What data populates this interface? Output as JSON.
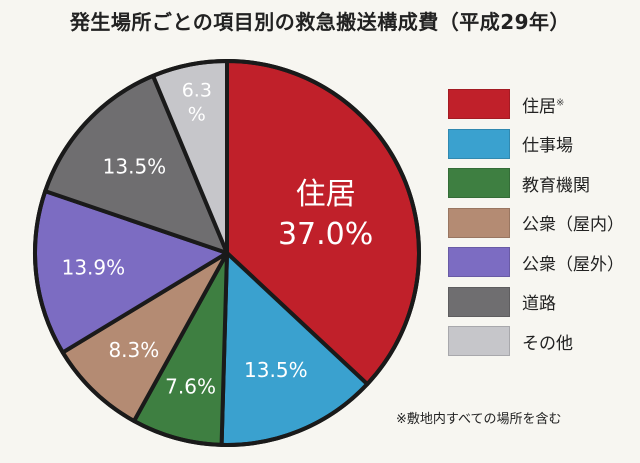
{
  "title": "発生場所ごとの項目別の救急搬送構成費（平成29年）",
  "footnote": "※敷地内すべての場所を含む",
  "chart_data": {
    "type": "pie",
    "title": "発生場所ごとの項目別の救急搬送構成費（平成29年）",
    "unit": "%",
    "slices": [
      {
        "label": "住居",
        "note": "※",
        "value": 37.0,
        "value_text": "37.0%",
        "color": "#c0202a",
        "text_color": "#ffffff"
      },
      {
        "label": "仕事場",
        "value": 13.5,
        "value_text": "13.5%",
        "color": "#3aa1cf",
        "text_color": "#ffffff"
      },
      {
        "label": "教育機関",
        "value": 7.6,
        "value_text": "7.6%",
        "color": "#3e7f41",
        "text_color": "#ffffff"
      },
      {
        "label": "公衆（屋内）",
        "value": 8.3,
        "value_text": "8.3%",
        "color": "#b48b73",
        "text_color": "#ffffff"
      },
      {
        "label": "公衆（屋外）",
        "value": 13.9,
        "value_text": "13.9%",
        "color": "#7c6cc2",
        "text_color": "#ffffff"
      },
      {
        "label": "道路",
        "value": 13.5,
        "value_text": "13.5%",
        "color": "#6f6e70",
        "text_color": "#ffffff"
      },
      {
        "label": "その他",
        "value": 6.3,
        "value_text": "6.3%",
        "color": "#c6c6ca",
        "text_color": "#ffffff"
      }
    ],
    "legend_position": "right"
  }
}
